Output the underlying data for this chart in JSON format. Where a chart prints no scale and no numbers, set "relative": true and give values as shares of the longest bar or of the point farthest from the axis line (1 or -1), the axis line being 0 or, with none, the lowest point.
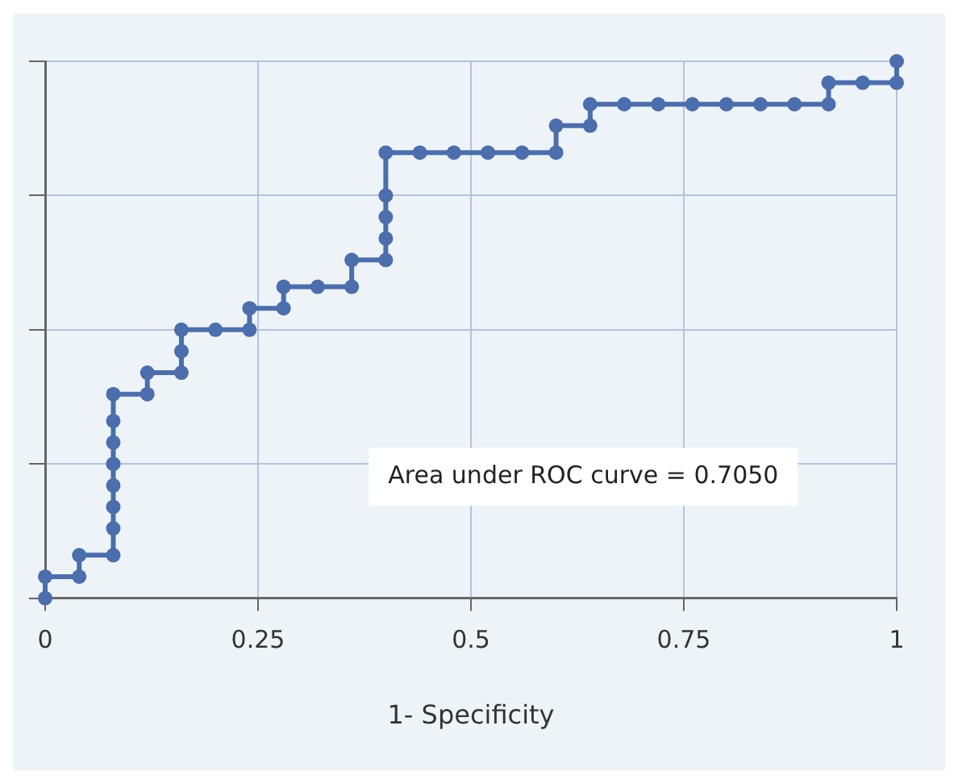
{
  "chart_data": {
    "type": "line",
    "xlabel": "1- Specificity",
    "relative": true,
    "x": [
      0,
      0,
      0.04,
      0.04,
      0.08,
      0.08,
      0.08,
      0.08,
      0.08,
      0.08,
      0.08,
      0.08,
      0.12,
      0.12,
      0.16,
      0.16,
      0.16,
      0.2,
      0.24,
      0.24,
      0.28,
      0.28,
      0.32,
      0.36,
      0.36,
      0.4,
      0.4,
      0.4,
      0.4,
      0.4,
      0.44,
      0.48,
      0.52,
      0.56,
      0.6,
      0.6,
      0.64,
      0.64,
      0.68,
      0.72,
      0.76,
      0.8,
      0.84,
      0.88,
      0.92,
      0.92,
      0.96,
      1,
      1
    ],
    "series": [
      {
        "color": "#4a6eae",
        "values": [
          0,
          0.04,
          0.04,
          0.08,
          0.08,
          0.13,
          0.17,
          0.21,
          0.25,
          0.29,
          0.33,
          0.38,
          0.38,
          0.42,
          0.42,
          0.46,
          0.5,
          0.5,
          0.5,
          0.54,
          0.54,
          0.58,
          0.58,
          0.58,
          0.63,
          0.63,
          0.67,
          0.71,
          0.75,
          0.83,
          0.83,
          0.83,
          0.83,
          0.83,
          0.83,
          0.88,
          0.88,
          0.92,
          0.92,
          0.92,
          0.92,
          0.92,
          0.92,
          0.92,
          0.92,
          0.96,
          0.96,
          0.96,
          1
        ]
      }
    ],
    "xlim": [
      0,
      1
    ],
    "xticks": [
      0,
      0.25,
      0.5,
      0.75,
      1
    ],
    "annotations": [
      "Area under ROC curve = 0.7050"
    ],
    "grid": true,
    "legend": false,
    "marker": "circle",
    "line_style": "solid"
  }
}
